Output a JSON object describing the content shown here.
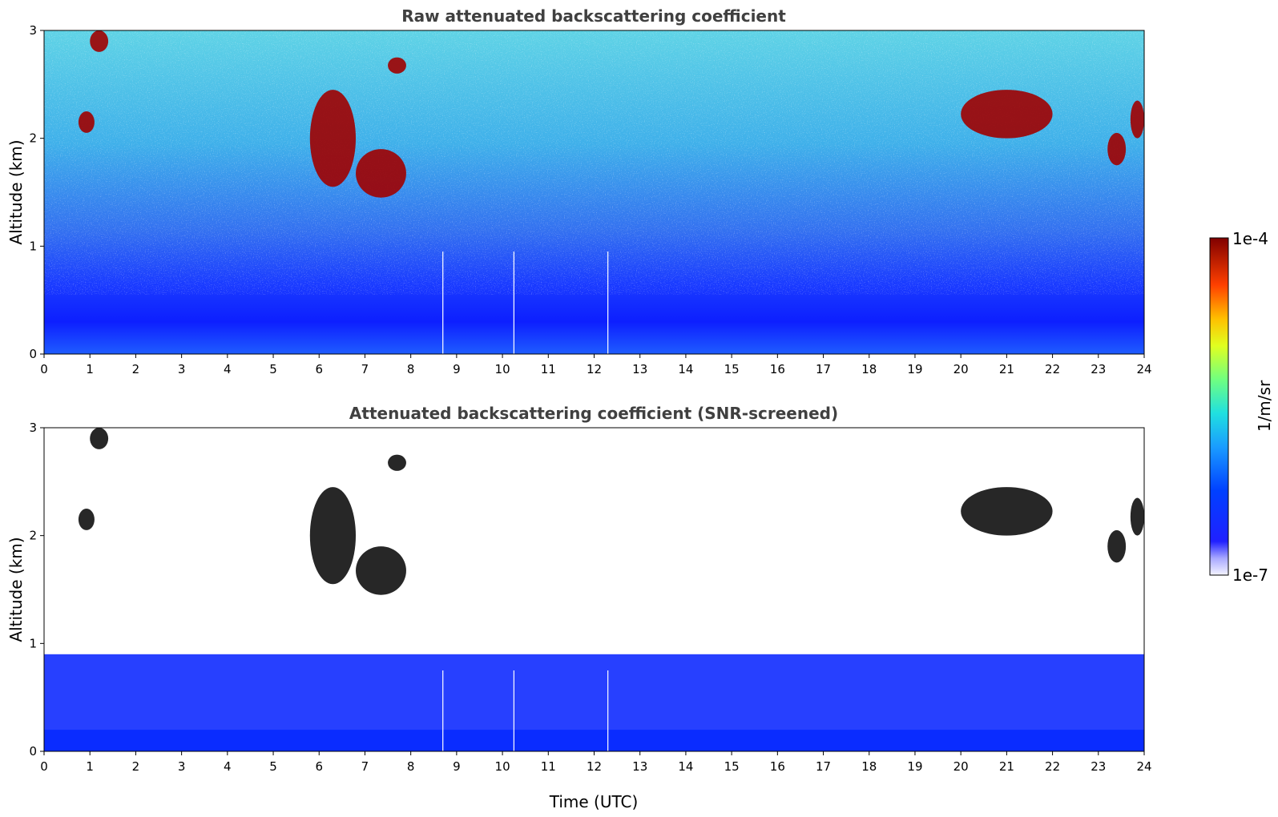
{
  "chart_data": [
    {
      "type": "heatmap",
      "title": "Raw attenuated backscattering coefficient",
      "xlabel": "",
      "ylabel": "Altitude (km)",
      "xlim": [
        0,
        24
      ],
      "ylim": [
        0,
        3
      ],
      "x_ticks": [
        "0",
        "1",
        "2",
        "3",
        "4",
        "5",
        "6",
        "7",
        "8",
        "9",
        "10",
        "11",
        "12",
        "13",
        "14",
        "15",
        "16",
        "17",
        "18",
        "19",
        "20",
        "21",
        "22",
        "23",
        "24"
      ],
      "y_ticks": [
        "0",
        "1",
        "2",
        "3"
      ],
      "gaps_utc": [
        8.7,
        10.25,
        12.3
      ],
      "features": [
        {
          "kind": "cloud",
          "x": [
            0.75,
            1.1
          ],
          "y": [
            2.05,
            2.25
          ]
        },
        {
          "kind": "cloud",
          "x": [
            1.0,
            1.4
          ],
          "y": [
            2.8,
            3.0
          ]
        },
        {
          "kind": "cloud",
          "x": [
            5.8,
            6.8
          ],
          "y": [
            1.55,
            2.45
          ]
        },
        {
          "kind": "cloud",
          "x": [
            6.8,
            7.9
          ],
          "y": [
            1.45,
            1.9
          ]
        },
        {
          "kind": "cloud",
          "x": [
            7.5,
            7.9
          ],
          "y": [
            2.6,
            2.75
          ]
        },
        {
          "kind": "cloud",
          "x": [
            20.0,
            22.0
          ],
          "y": [
            2.0,
            2.45
          ]
        },
        {
          "kind": "cloud",
          "x": [
            23.2,
            23.6
          ],
          "y": [
            1.75,
            2.05
          ]
        },
        {
          "kind": "cloud",
          "x": [
            23.7,
            24.0
          ],
          "y": [
            2.0,
            2.35
          ]
        }
      ]
    },
    {
      "type": "heatmap",
      "title": "Attenuated backscattering coefficient (SNR-screened)",
      "xlabel": "Time (UTC)",
      "ylabel": "Altitude (km)",
      "xlim": [
        0,
        24
      ],
      "ylim": [
        0,
        3
      ],
      "x_ticks": [
        "0",
        "1",
        "2",
        "3",
        "4",
        "5",
        "6",
        "7",
        "8",
        "9",
        "10",
        "11",
        "12",
        "13",
        "14",
        "15",
        "16",
        "17",
        "18",
        "19",
        "20",
        "21",
        "22",
        "23",
        "24"
      ],
      "y_ticks": [
        "0",
        "1",
        "2",
        "3"
      ],
      "gaps_utc": [
        8.7,
        10.25,
        12.3
      ],
      "features": [
        {
          "kind": "boundary-layer",
          "x": [
            0,
            24
          ],
          "y": [
            0,
            0.9
          ]
        },
        {
          "kind": "cloud",
          "x": [
            0.75,
            1.1
          ],
          "y": [
            2.05,
            2.25
          ]
        },
        {
          "kind": "cloud",
          "x": [
            1.0,
            1.4
          ],
          "y": [
            2.8,
            3.0
          ]
        },
        {
          "kind": "cloud",
          "x": [
            5.8,
            6.8
          ],
          "y": [
            1.55,
            2.45
          ]
        },
        {
          "kind": "cloud",
          "x": [
            6.8,
            7.9
          ],
          "y": [
            1.45,
            1.9
          ]
        },
        {
          "kind": "cloud",
          "x": [
            7.5,
            7.9
          ],
          "y": [
            2.6,
            2.75
          ]
        },
        {
          "kind": "cloud",
          "x": [
            20.0,
            22.0
          ],
          "y": [
            2.0,
            2.45
          ]
        },
        {
          "kind": "cloud",
          "x": [
            23.2,
            23.6
          ],
          "y": [
            1.75,
            2.05
          ]
        },
        {
          "kind": "cloud",
          "x": [
            23.7,
            24.0
          ],
          "y": [
            2.0,
            2.35
          ]
        }
      ]
    }
  ],
  "colorbar": {
    "label": "1/m/sr",
    "top_label": "1e-4",
    "bottom_label": "1e-7",
    "colormap": "jet",
    "scale": "log",
    "range": [
      1e-07,
      0.0001
    ]
  },
  "colors": {
    "title": "#404040",
    "low": "#1a1aff",
    "mid": "#3fb8e8",
    "cloud": "#a00000",
    "screened_cloud": "#101010"
  }
}
